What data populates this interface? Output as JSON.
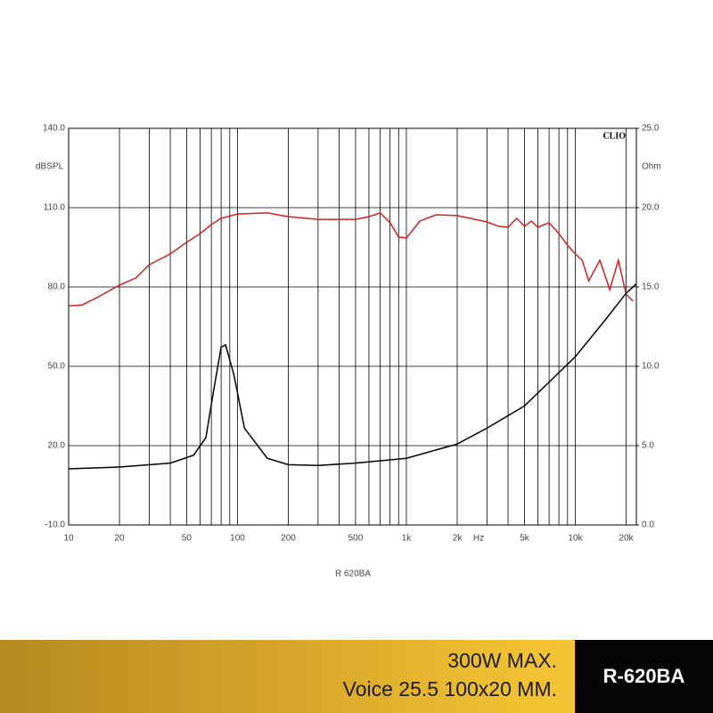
{
  "chart_data": {
    "type": "line",
    "annotations": {
      "left_unit": "dBSPL",
      "right_unit": "Ohm",
      "brand": "CLIO",
      "x_unit": "Hz",
      "caption": "R 620BA"
    },
    "xscale": "log",
    "xlim": [
      10,
      23000
    ],
    "xticks": [
      10,
      20,
      50,
      100,
      200,
      500,
      {
        "value": 1000,
        "label": "1k"
      },
      {
        "value": 2000,
        "label": "2k"
      },
      {
        "value": 5000,
        "label": "5k"
      },
      {
        "value": 10000,
        "label": "10k"
      },
      {
        "value": 20000,
        "label": "20k"
      }
    ],
    "ylim": [
      -10,
      140
    ],
    "yticks": [
      {
        "value": -10,
        "label": "-10.0"
      },
      {
        "value": 20,
        "label": "20.0"
      },
      {
        "value": 50,
        "label": "50.0"
      },
      {
        "value": 80,
        "label": "80.0"
      },
      {
        "value": 110,
        "label": "110.0"
      },
      {
        "value": 140,
        "label": "140.0"
      }
    ],
    "y2lim": [
      0,
      25
    ],
    "y2ticks": [
      {
        "value": 0,
        "label": "0.0"
      },
      {
        "value": 5,
        "label": "5.0"
      },
      {
        "value": 10,
        "label": "10.0"
      },
      {
        "value": 15,
        "label": "15.0"
      },
      {
        "value": 20,
        "label": "20.0"
      },
      {
        "value": 25,
        "label": "25.0"
      }
    ],
    "grid": true,
    "series": [
      {
        "color": "#d42020",
        "x": [
          10,
          12,
          15,
          20,
          25,
          30,
          40,
          50,
          60,
          70,
          80,
          100,
          150,
          200,
          300,
          400,
          500,
          600,
          700,
          800,
          900,
          1000,
          1200,
          1500,
          2000,
          3000,
          3500,
          4000,
          4500,
          5000,
          5500,
          6000,
          7000,
          8000,
          9000,
          10000,
          11000,
          12000,
          14000,
          16000,
          18000,
          20000,
          22000
        ],
        "values": [
          72.9,
          73.2,
          76.3,
          80.7,
          83.4,
          88.4,
          92.5,
          96.9,
          100.2,
          103.6,
          106.0,
          107.6,
          108,
          106.6,
          105.6,
          105.6,
          105.6,
          106.6,
          108,
          104.3,
          98.9,
          98.5,
          104.9,
          107.3,
          107,
          104.6,
          103,
          102.6,
          106,
          103,
          104.9,
          102.6,
          104.3,
          100.2,
          95.8,
          92.5,
          90.1,
          82.3,
          90.1,
          79,
          90.1,
          77.3,
          74.6
        ]
      },
      {
        "color": "#000000",
        "axis": "y2",
        "x": [
          10,
          20,
          40,
          55,
          65,
          72,
          80,
          85,
          95,
          110,
          150,
          200,
          300,
          500,
          1000,
          2000,
          3000,
          5000,
          10000,
          15000,
          20000,
          23000
        ],
        "values": [
          3.54,
          3.65,
          3.9,
          4.4,
          5.5,
          8.4,
          11.2,
          11.35,
          9.5,
          6.1,
          4.2,
          3.8,
          3.75,
          3.9,
          4.2,
          5.1,
          6.1,
          7.5,
          10.6,
          12.9,
          14.6,
          15.2
        ]
      }
    ]
  },
  "footer": {
    "line1": "300W MAX.",
    "line2": "Voice 25.5 100x20 MM.",
    "model": "R-620BA"
  }
}
